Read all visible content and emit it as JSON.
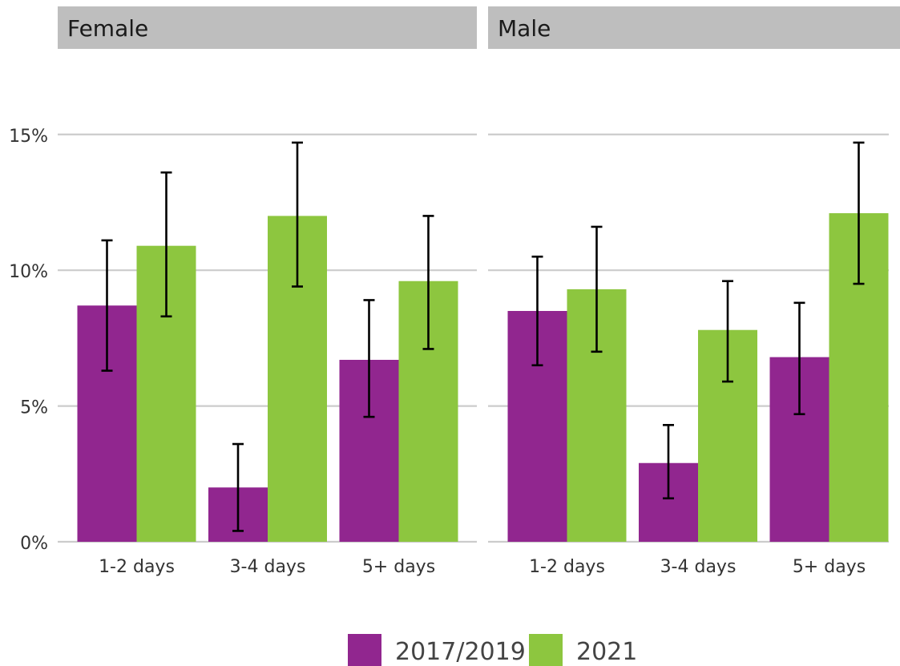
{
  "chart_data": {
    "type": "bar",
    "facets": [
      {
        "name": "Female",
        "categories": [
          "1-2 days",
          "3-4 days",
          "5+ days"
        ],
        "series": [
          {
            "name": "2017/2019",
            "values": [
              8.7,
              2.0,
              6.7
            ],
            "error_low": [
              6.3,
              0.4,
              4.6
            ],
            "error_high": [
              11.1,
              3.6,
              8.9
            ]
          },
          {
            "name": "2021",
            "values": [
              10.9,
              12.0,
              9.6
            ],
            "error_low": [
              8.3,
              9.4,
              7.1
            ],
            "error_high": [
              13.6,
              14.7,
              12.0
            ]
          }
        ]
      },
      {
        "name": "Male",
        "categories": [
          "1-2 days",
          "3-4 days",
          "5+ days"
        ],
        "series": [
          {
            "name": "2017/2019",
            "values": [
              8.5,
              2.9,
              6.8
            ],
            "error_low": [
              6.5,
              1.6,
              4.7
            ],
            "error_high": [
              10.5,
              4.3,
              8.8
            ]
          },
          {
            "name": "2021",
            "values": [
              9.3,
              7.8,
              12.1
            ],
            "error_low": [
              7.0,
              5.9,
              9.5
            ],
            "error_high": [
              11.6,
              9.6,
              14.7
            ]
          }
        ]
      }
    ],
    "y_ticks": [
      "0%",
      "5%",
      "10%",
      "15%"
    ],
    "y_tick_values": [
      0,
      5,
      10,
      15
    ],
    "ylim": [
      0,
      17
    ],
    "grid": true,
    "legend_placement": "bottom",
    "colors": {
      "2017/2019": "#91268f",
      "2021": "#8dc63f",
      "strip": "#bebebe",
      "grid": "#cccccc"
    }
  }
}
